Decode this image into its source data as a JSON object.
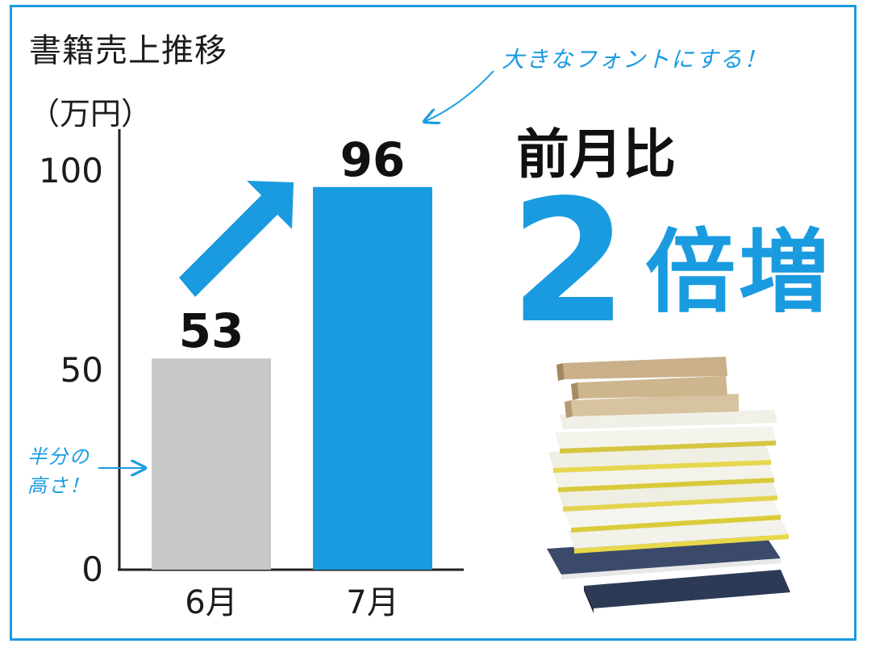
{
  "chart_data": {
    "type": "bar",
    "title": "書籍売上推移",
    "ylabel": "（万円）",
    "categories": [
      "6月",
      "7月"
    ],
    "values": [
      53,
      96
    ],
    "value_labels": [
      "53",
      "96"
    ],
    "ylim": [
      0,
      100
    ],
    "yticks": [
      0,
      50,
      100
    ],
    "ytick_labels": [
      "0",
      "50",
      "100"
    ],
    "colors": [
      "#c8c8c8",
      "#1a9be0"
    ],
    "grid": false
  },
  "annotations": {
    "big_font_note": "大きなフォントにする！",
    "half_height_note_line1": "半分の",
    "half_height_note_line2": "高さ！"
  },
  "highlight": {
    "label": "前月比",
    "number": "2",
    "word": "倍増"
  },
  "colors": {
    "accent": "#1a9be0",
    "bar_gray": "#c8c8c8",
    "text": "#1c1c1c"
  },
  "icons": {
    "trend_arrow": "up-right-arrow-icon",
    "books": "book-stack-icon"
  }
}
